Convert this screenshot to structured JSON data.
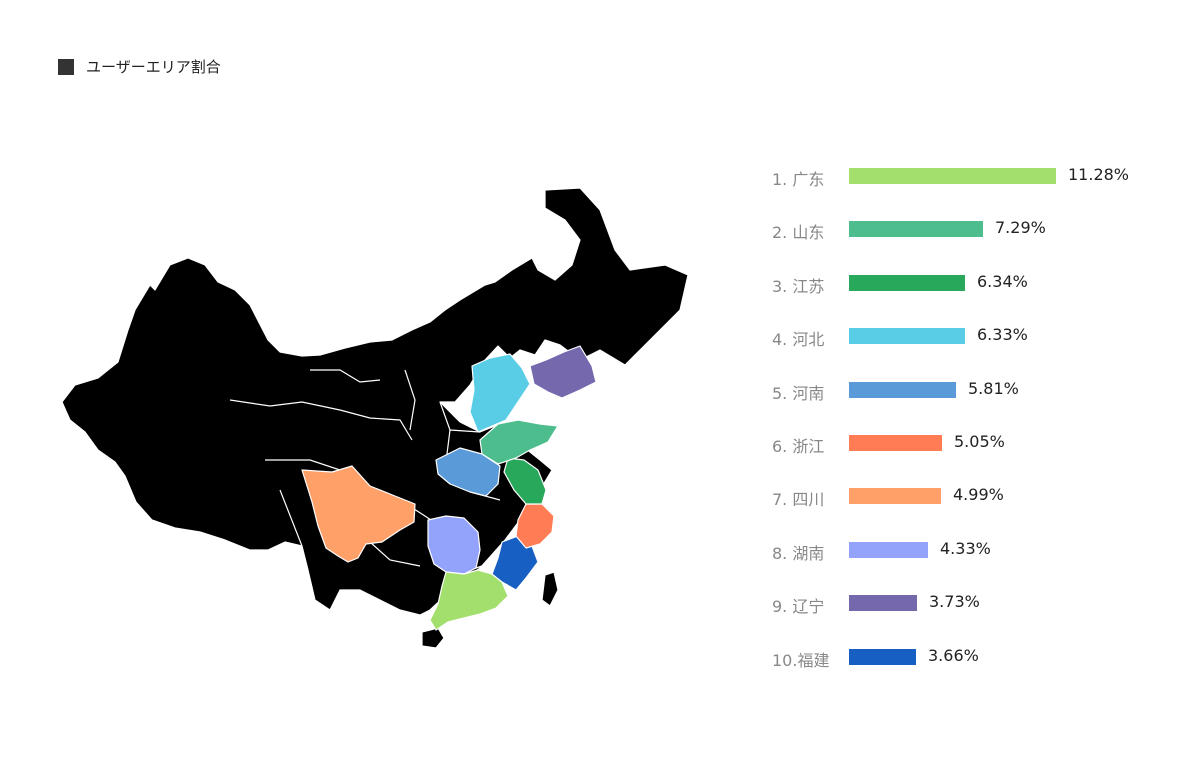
{
  "header": {
    "title": "ユーザーエリア割合"
  },
  "map": {
    "base_color": "#c6c6c6",
    "border_color": "#ffffff"
  },
  "chart_data": {
    "type": "bar",
    "title": "ユーザーエリア割合",
    "unit": "%",
    "categories": [
      "1. 广东",
      "2. 山东",
      "3. 江苏",
      "4. 河北",
      "5. 河南",
      "6. 浙江",
      "7. 四川",
      "8. 湖南",
      "9. 辽宁",
      "10.福建"
    ],
    "provinces": [
      "广东",
      "山东",
      "江苏",
      "河北",
      "河南",
      "浙江",
      "四川",
      "湖南",
      "辽宁",
      "福建"
    ],
    "values": [
      11.28,
      7.29,
      6.34,
      6.33,
      5.81,
      5.05,
      4.99,
      4.33,
      3.73,
      3.66
    ],
    "value_labels": [
      "11.28%",
      "7.29%",
      "6.34%",
      "6.33%",
      "5.81%",
      "5.05%",
      "4.99%",
      "4.33%",
      "3.73%",
      "3.66%"
    ],
    "colors": [
      "#a2df6c",
      "#4dbd8d",
      "#27a85a",
      "#5acde6",
      "#5b9ad9",
      "#ff7c55",
      "#ffa068",
      "#93a3fb",
      "#7568ad",
      "#175fc2"
    ]
  }
}
